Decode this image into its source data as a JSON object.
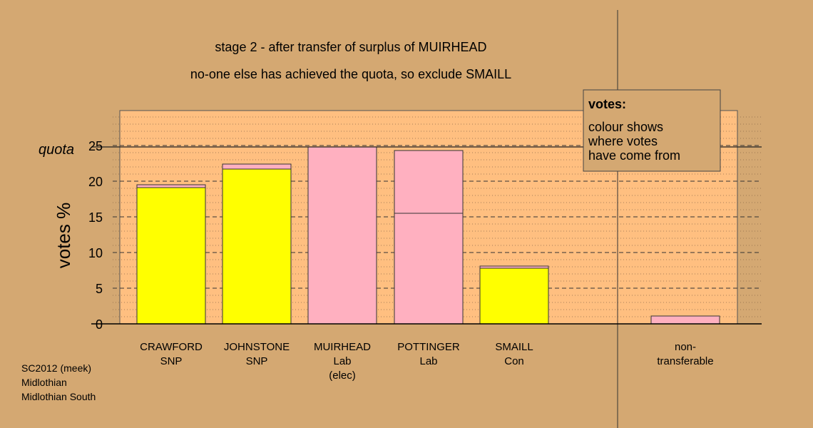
{
  "chart_data": {
    "type": "bar",
    "title": "stage 2 - after transfer of surplus of MUIRHEAD",
    "subtitle": "no-one else has achieved the quota, so exclude SMAILL",
    "ylabel": "votes %",
    "quota_label": "quota",
    "quota": 24.8,
    "ylim": [
      0,
      29
    ],
    "yticks": [
      0,
      5,
      10,
      15,
      20,
      25
    ],
    "grid": true,
    "legend_placement": "top-right",
    "categories": [
      {
        "name": "CRAWFORD",
        "party": "SNP",
        "note": ""
      },
      {
        "name": "JOHNSTONE",
        "party": "SNP",
        "note": ""
      },
      {
        "name": "MUIRHEAD",
        "party": "Lab",
        "note": "(elec)"
      },
      {
        "name": "POTTINGER",
        "party": "Lab",
        "note": ""
      },
      {
        "name": "SMAILL",
        "party": "Con",
        "note": ""
      },
      {
        "name": "non-",
        "party": "transferable",
        "note": ""
      }
    ],
    "series": [
      {
        "values": [
          19.1,
          21.7,
          0,
          0,
          7.8,
          0
        ],
        "color": "#ffff00"
      },
      {
        "values": [
          0,
          0,
          0,
          0,
          0,
          0
        ],
        "color": "#0000ff"
      },
      {
        "values": [
          0.4,
          0.7,
          24.8,
          15.5,
          0.3,
          1.1
        ],
        "color": "#ffb0c0"
      },
      {
        "values": [
          0,
          0,
          0,
          8.8,
          0,
          0
        ],
        "color": "#ffb0c0"
      }
    ],
    "bar_colors": {
      "SNP": "#ffff00",
      "Lab": "#ffb0c0",
      "Con": "#0000ff"
    }
  },
  "legend": {
    "title": "votes:",
    "lines": [
      "colour shows",
      "where votes",
      "have come from"
    ]
  },
  "footer": {
    "lines": [
      "SC2012 (meek)",
      "Midlothian",
      "Midlothian South"
    ]
  }
}
